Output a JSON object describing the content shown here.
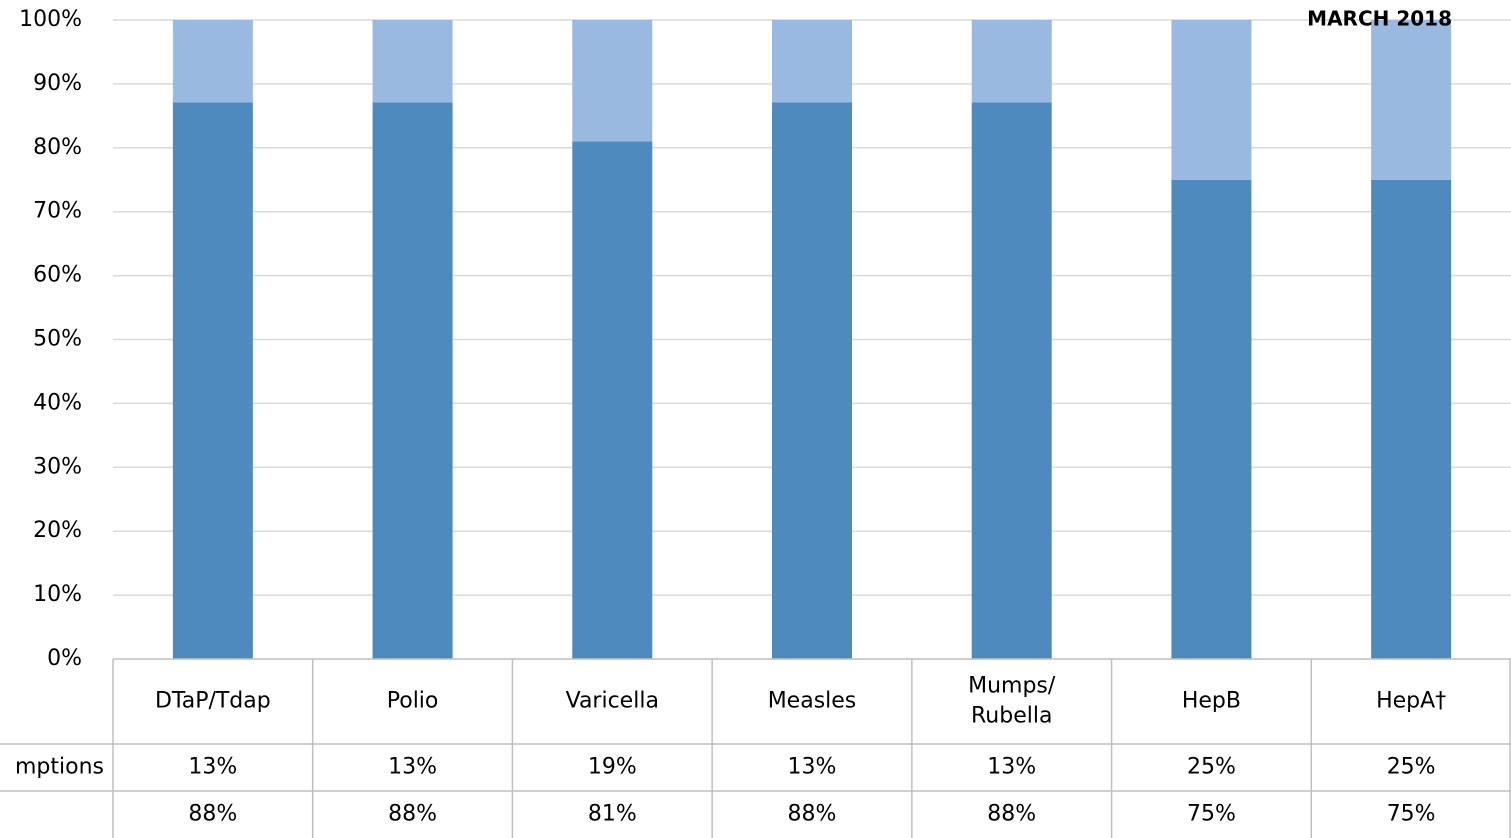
{
  "chart_data": {
    "type": "bar",
    "stacked": true,
    "percent_stacked": true,
    "title": "MARCH 2018",
    "categories": [
      "DTaP/Tdap",
      "Polio",
      "Varicella",
      "Measles",
      "Mumps/\nRubella",
      "HepB",
      "HepA†"
    ],
    "series": [
      {
        "values": [
          88,
          88,
          81,
          88,
          88,
          75,
          75
        ],
        "color": "#4f8abe"
      },
      {
        "name": "mptions",
        "values": [
          13,
          13,
          19,
          13,
          13,
          25,
          25
        ],
        "color": "#9ab9e0"
      }
    ],
    "ylim": [
      0,
      100
    ],
    "y_ticks": [
      "0%",
      "10%",
      "20%",
      "30%",
      "40%",
      "50%",
      "60%",
      "70%",
      "80%",
      "90%",
      "100%"
    ],
    "grid": true,
    "data_table": {
      "rows": [
        {
          "label": "mptions",
          "cells": [
            "13%",
            "13%",
            "19%",
            "13%",
            "13%",
            "25%",
            "25%"
          ]
        },
        {
          "label": "",
          "cells": [
            "88%",
            "88%",
            "81%",
            "88%",
            "88%",
            "75%",
            "75%"
          ]
        }
      ]
    },
    "colors": {
      "grid": "#d9d9d9",
      "table_border": "#bfbfbf"
    }
  }
}
